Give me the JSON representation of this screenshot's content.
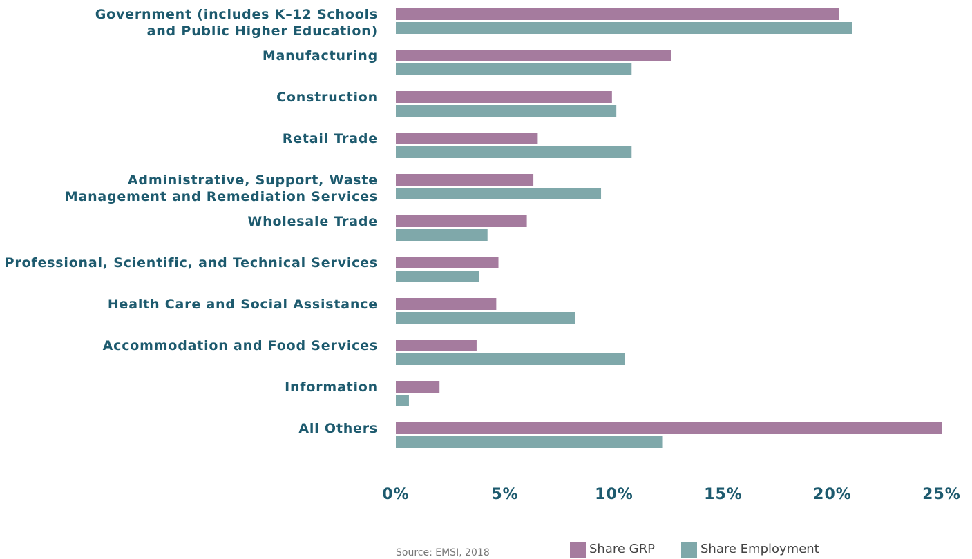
{
  "chart_data": {
    "type": "bar",
    "orientation": "horizontal",
    "categories": [
      "Government (includes K–12 Schools\nand Public Higher Education)",
      "Manufacturing",
      "Construction",
      "Retail Trade",
      "Administrative, Support, Waste\nManagement and Remediation Services",
      "Wholesale Trade",
      "Professional, Scientific, and Technical Services",
      "Health Care and Social Assistance",
      "Accommodation and Food Services",
      "Information",
      "All Others"
    ],
    "series": [
      {
        "name": "Share GRP",
        "color": "#a57b9e",
        "values": [
          20.3,
          12.6,
          9.9,
          6.5,
          6.3,
          6.0,
          4.7,
          4.6,
          3.7,
          2.0,
          25.0
        ]
      },
      {
        "name": "Share Employment",
        "color": "#7fa8aa",
        "values": [
          20.9,
          10.8,
          10.1,
          10.8,
          9.4,
          4.2,
          3.8,
          8.2,
          10.5,
          0.6,
          12.2
        ]
      }
    ],
    "xlim": [
      0,
      25
    ],
    "xticks": [
      {
        "value": 0,
        "label": "0%"
      },
      {
        "value": 5,
        "label": "5%"
      },
      {
        "value": 10,
        "label": "10%"
      },
      {
        "value": 15,
        "label": "15%"
      },
      {
        "value": 20,
        "label": "20%"
      },
      {
        "value": 25,
        "label": "25%"
      }
    ],
    "source": "Source: EMSI, 2018",
    "legend": "bottom"
  }
}
